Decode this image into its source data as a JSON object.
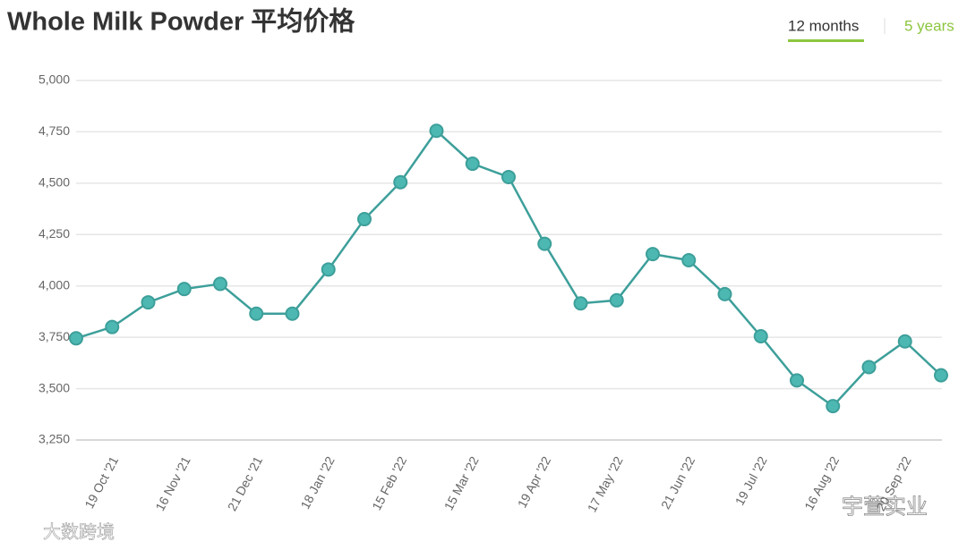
{
  "header": {
    "title": "Whole Milk Powder 平均价格",
    "tabs": [
      "12 months",
      "5 years"
    ]
  },
  "watermarks": [
    "大数跨境",
    "宇萱实业"
  ],
  "chart_data": {
    "type": "line",
    "categories": [
      null,
      "19 Oct '21",
      null,
      "16 Nov '21",
      null,
      "21 Dec '21",
      null,
      "18 Jan '22",
      null,
      "15 Feb '22",
      null,
      "15 Mar '22",
      null,
      "19 Apr '22",
      null,
      "17 May '22",
      null,
      "21 Jun '22",
      null,
      "19 Jul '22",
      null,
      "16 Aug '22",
      null,
      "20 Sep '22",
      null
    ],
    "values": [
      3745,
      3800,
      3920,
      3985,
      4010,
      3865,
      3865,
      4080,
      4325,
      4505,
      4755,
      4595,
      4530,
      4205,
      3915,
      3930,
      4155,
      4125,
      3960,
      3755,
      3540,
      3415,
      3605,
      3730,
      3565
    ],
    "color": "#3d9f9a",
    "ylim": [
      3250,
      5000
    ],
    "yticks": [
      {
        "value": 3250,
        "label": "3,250"
      },
      {
        "value": 3500,
        "label": "3,500"
      },
      {
        "value": 3750,
        "label": "3,750"
      },
      {
        "value": 4000,
        "label": "4,000"
      },
      {
        "value": 4250,
        "label": "4,250"
      },
      {
        "value": 4500,
        "label": "4,500"
      },
      {
        "value": 4750,
        "label": "4,750"
      },
      {
        "value": 5000,
        "label": "5,000"
      }
    ],
    "grid": true
  }
}
